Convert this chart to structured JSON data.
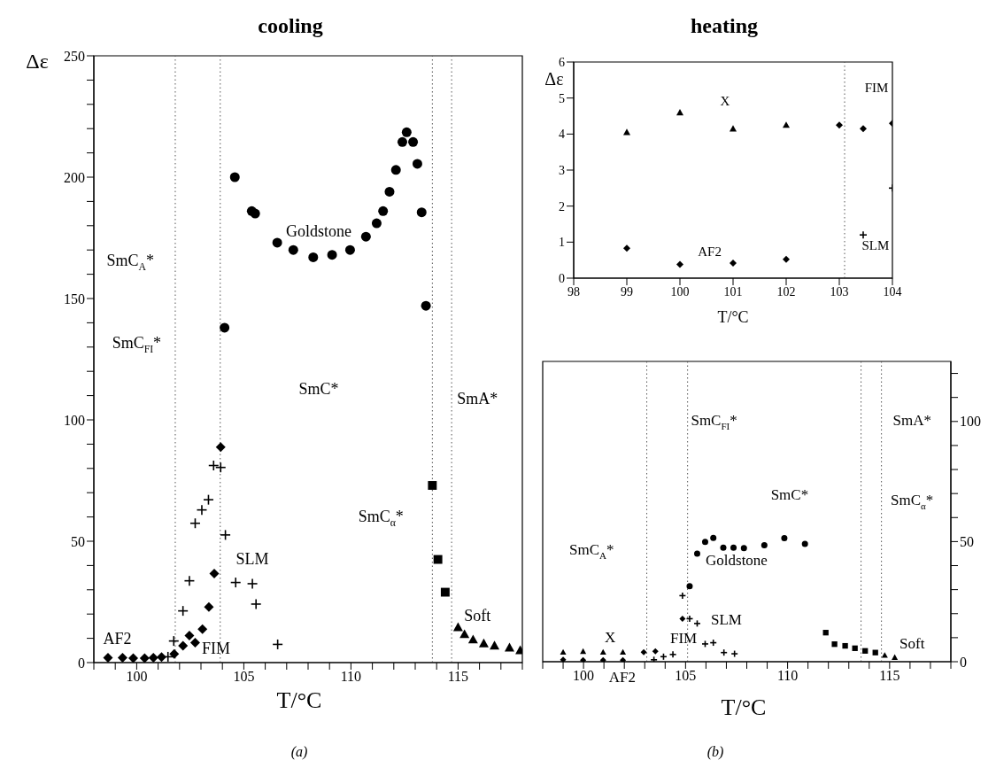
{
  "chart_data": [
    {
      "type": "scatter",
      "title": "cooling",
      "xlabel": "T/°C",
      "ylabel": "Δε",
      "xlim": [
        98,
        118
      ],
      "xticks": [
        {
          "value": 98,
          "label": null
        },
        {
          "value": 99,
          "label": null
        },
        100,
        {
          "value": 101,
          "label": null
        },
        {
          "value": 102,
          "label": null
        },
        {
          "value": 103,
          "label": null
        },
        {
          "value": 104,
          "label": null
        },
        105,
        {
          "value": 106,
          "label": null
        },
        {
          "value": 107,
          "label": null
        },
        {
          "value": 108,
          "label": null
        },
        {
          "value": 109,
          "label": null
        },
        110,
        {
          "value": 111,
          "label": null
        },
        {
          "value": 112,
          "label": null
        },
        {
          "value": 113,
          "label": null
        },
        {
          "value": 114,
          "label": null
        },
        115,
        {
          "value": 116,
          "label": null
        },
        {
          "value": 117,
          "label": null
        },
        {
          "value": 118,
          "label": null
        }
      ],
      "ylim": [
        0,
        250
      ],
      "yticks": [
        0,
        {
          "value": 10,
          "label": null
        },
        {
          "value": 20,
          "label": null
        },
        {
          "value": 30,
          "label": null
        },
        {
          "value": 40,
          "label": null
        },
        50,
        {
          "value": 60,
          "label": null
        },
        {
          "value": 70,
          "label": null
        },
        {
          "value": 80,
          "label": null
        },
        {
          "value": 90,
          "label": null
        },
        100,
        {
          "value": 110,
          "label": null
        },
        {
          "value": 120,
          "label": null
        },
        {
          "value": 130,
          "label": null
        },
        {
          "value": 140,
          "label": null
        },
        150,
        {
          "value": 160,
          "label": null
        },
        {
          "value": 170,
          "label": null
        },
        {
          "value": 180,
          "label": null
        },
        {
          "value": 190,
          "label": null
        },
        200,
        {
          "value": 210,
          "label": null
        },
        {
          "value": 220,
          "label": null
        },
        {
          "value": 230,
          "label": null
        },
        {
          "value": 240,
          "label": null
        },
        250
      ],
      "series": [
        {
          "color": "#000000",
          "marker": "diamond",
          "x": [
            98.66,
            99.34,
            99.84,
            100.37,
            100.78,
            101.16,
            101.75
          ],
          "values": [
            2,
            2,
            1.8,
            1.8,
            2,
            2.3,
            3.6
          ]
        },
        {
          "color": "#000000",
          "marker": "diamond",
          "x": [
            102.16,
            102.46,
            102.73,
            103.07,
            103.37,
            103.62,
            103.92
          ],
          "values": [
            6.9,
            11.1,
            8.2,
            13.8,
            22.9,
            36.7,
            88.8
          ]
        },
        {
          "color": "#000000",
          "marker": "cross",
          "x": [
            101.46,
            101.73,
            102.16,
            102.46,
            102.73,
            103.04,
            103.35,
            103.59,
            103.92,
            104.14,
            104.62,
            105.4,
            105.57,
            106.58
          ],
          "values": [
            2.4,
            8.9,
            21.3,
            33.7,
            57.4,
            62.9,
            67.1,
            81.2,
            80.4,
            52.6,
            33,
            32.5,
            24.1,
            7.5
          ]
        },
        {
          "color": "#000000",
          "marker": "circle",
          "x": [
            104.1,
            104.58,
            105.37,
            105.53,
            106.56,
            107.31,
            108.24,
            109.12,
            109.96,
            110.7,
            111.2,
            111.5,
            111.8,
            112.1,
            112.4,
            112.6,
            112.9,
            113.1,
            113.3,
            113.5
          ],
          "values": [
            138,
            200,
            186,
            185,
            173,
            170,
            167,
            168,
            170,
            175.5,
            181,
            186,
            194,
            203,
            214.5,
            218.5,
            214.5,
            205.5,
            185.5,
            147
          ]
        },
        {
          "color": "#000000",
          "marker": "square",
          "x": [
            113.8,
            114.06,
            114.4
          ],
          "values": [
            73,
            42.5,
            29
          ]
        },
        {
          "color": "#000000",
          "marker": "triangle",
          "x": [
            115,
            115.3,
            115.7,
            116.2,
            116.7,
            117.4,
            117.9
          ],
          "values": [
            14.6,
            11.7,
            9.5,
            7.9,
            7,
            6.2,
            5.1
          ]
        }
      ],
      "ref_lines": [
        {
          "axis": "x",
          "value": 101.8,
          "line_style": "dotted"
        },
        {
          "axis": "x",
          "value": 103.9,
          "line_style": "dotted"
        },
        {
          "axis": "x",
          "value": 113.8,
          "line_style": "dotted"
        },
        {
          "axis": "x",
          "value": 114.7,
          "line_style": "dotted"
        }
      ],
      "annotations": [
        "SmC$_{A}$*",
        "SmC$_{FI}$*",
        "Goldstone",
        "SmC*",
        "SmA*",
        "SmC$_{α}$*",
        "Soft",
        "SLM",
        "AF2",
        "FIM",
        "(a)"
      ]
    },
    {
      "type": "scatter",
      "title": "heating",
      "xlabel": "T/°C",
      "ylabel": "Δε",
      "xlim": [
        98,
        104
      ],
      "xticks": [
        98,
        99,
        100,
        101,
        102,
        103,
        104
      ],
      "ylim": [
        0,
        6
      ],
      "yticks": [
        0,
        1,
        2,
        3,
        4,
        5,
        6
      ],
      "series": [
        {
          "color": "#000000",
          "marker": "triangle",
          "x": [
            99,
            100,
            101,
            102
          ],
          "values": [
            4.05,
            4.6,
            4.15,
            4.25
          ]
        },
        {
          "color": "#000000",
          "marker": "diamond",
          "x": [
            99,
            100,
            101,
            102,
            103
          ],
          "values": [
            0.83,
            0.38,
            0.42,
            0.52,
            4.25
          ]
        },
        {
          "color": "#000000",
          "marker": "diamond",
          "x": [
            103.45,
            104
          ],
          "values": [
            4.15,
            4.3
          ]
        },
        {
          "color": "#000000",
          "marker": "cross",
          "x": [
            103.45,
            104
          ],
          "values": [
            1.2,
            2.5
          ]
        }
      ],
      "ref_lines": [
        {
          "axis": "x",
          "value": 103.1,
          "line_style": "dotted"
        }
      ],
      "annotations": [
        "X",
        "AF2",
        "FIM",
        "SLM"
      ]
    },
    {
      "type": "scatter",
      "xlabel": "T/°C",
      "xlim": [
        98,
        118
      ],
      "xticks": [
        {
          "value": 98,
          "label": null
        },
        {
          "value": 99,
          "label": null
        },
        100,
        {
          "value": 101,
          "label": null
        },
        {
          "value": 102,
          "label": null
        },
        {
          "value": 103,
          "label": null
        },
        {
          "value": 104,
          "label": null
        },
        105,
        {
          "value": 106,
          "label": null
        },
        {
          "value": 107,
          "label": null
        },
        {
          "value": 108,
          "label": null
        },
        {
          "value": 109,
          "label": null
        },
        110,
        {
          "value": 111,
          "label": null
        },
        {
          "value": 112,
          "label": null
        },
        {
          "value": 113,
          "label": null
        },
        {
          "value": 114,
          "label": null
        },
        115,
        {
          "value": 116,
          "label": null
        },
        {
          "value": 117,
          "label": null
        },
        {
          "value": 118,
          "label": null
        }
      ],
      "ylim": [
        0,
        125
      ],
      "yticks": [
        0,
        {
          "value": 10,
          "label": null
        },
        {
          "value": 20,
          "label": null
        },
        {
          "value": 30,
          "label": null
        },
        {
          "value": 40,
          "label": null
        },
        50,
        {
          "value": 60,
          "label": null
        },
        {
          "value": 70,
          "label": null
        },
        {
          "value": 80,
          "label": null
        },
        {
          "value": 90,
          "label": null
        },
        100,
        {
          "value": 110,
          "label": null
        },
        {
          "value": 120,
          "label": null
        }
      ],
      "series": [
        {
          "color": "#000000",
          "marker": "triangle",
          "x": [
            99,
            99.98,
            100.96,
            101.93
          ],
          "values": [
            4,
            4.3,
            4,
            4
          ]
        },
        {
          "color": "#000000",
          "marker": "diamond",
          "x": [
            99,
            99.98,
            100.96,
            101.93,
            102.95
          ],
          "values": [
            0.8,
            0.6,
            0.6,
            0.6,
            4
          ]
        },
        {
          "color": "#000000",
          "marker": "diamond",
          "x": [
            103.52,
            104.85
          ],
          "values": [
            4.3,
            17.9
          ]
        },
        {
          "color": "#000000",
          "marker": "cross",
          "x": [
            103.45,
            103.92,
            104.38,
            104.85,
            105.2,
            105.57,
            105.96,
            106.36,
            106.88,
            107.4
          ],
          "values": [
            0.8,
            2.1,
            3,
            27.5,
            17.9,
            15.9,
            7.4,
            7.9,
            3.8,
            3.3
          ]
        },
        {
          "color": "#000000",
          "marker": "circle",
          "x": [
            105.2,
            105.57,
            105.96,
            106.36,
            106.85,
            107.35,
            107.86,
            108.86,
            109.84,
            110.85
          ],
          "values": [
            31.4,
            45,
            49.9,
            51.5,
            47.5,
            47.5,
            47.3,
            48.5,
            51.4,
            49
          ]
        },
        {
          "color": "#000000",
          "marker": "square",
          "x": [
            111.87,
            112.3,
            112.82,
            113.3,
            113.8,
            114.3
          ],
          "values": [
            12.1,
            7.3,
            6.6,
            5.6,
            4.5,
            3.8
          ]
        },
        {
          "color": "#000000",
          "marker": "triangle",
          "x": [
            114.76,
            115.25
          ],
          "values": [
            2.7,
            1.8
          ]
        }
      ],
      "ref_lines": [
        {
          "axis": "x",
          "value": 103.1,
          "line_style": "dotted"
        },
        {
          "axis": "x",
          "value": 105.1,
          "line_style": "dotted"
        },
        {
          "axis": "x",
          "value": 113.6,
          "line_style": "dotted"
        },
        {
          "axis": "x",
          "value": 114.6,
          "line_style": "dotted"
        }
      ],
      "annotations": [
        "SmC$_{A}$*",
        "SmC$_{FI}$*",
        "SmC*",
        "SmA*",
        "SmC$_{α}$*",
        "Goldstone",
        "SLM",
        "FIM",
        "X",
        "AF2",
        "Soft",
        "(b)"
      ]
    }
  ]
}
